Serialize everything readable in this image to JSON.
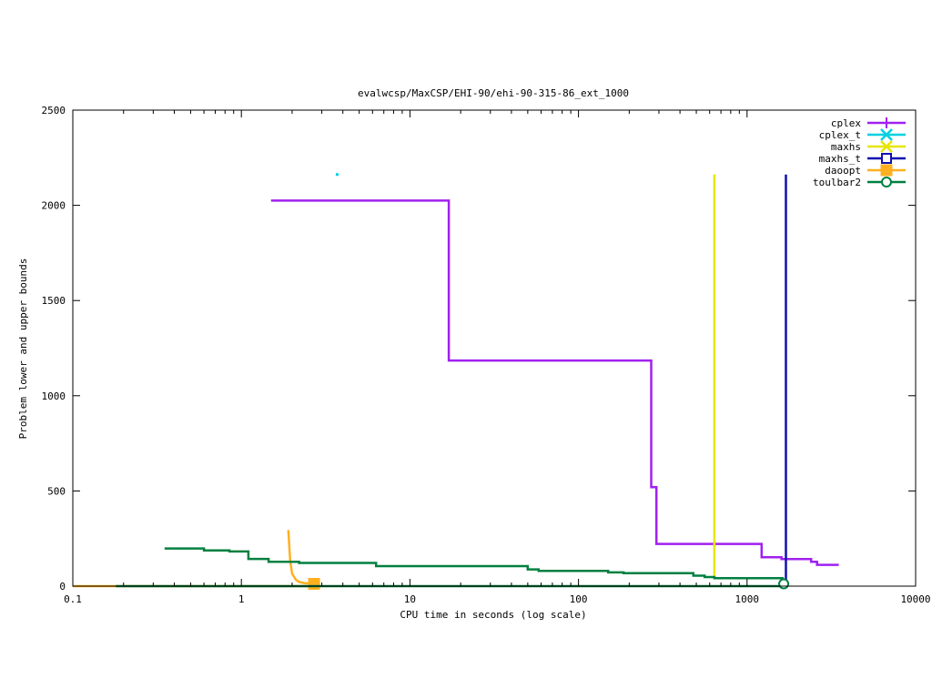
{
  "chart_data": {
    "type": "line",
    "title": "evalwcsp/MaxCSP/EHI-90/ehi-90-315-86_ext_1000",
    "xlabel": "CPU time in seconds (log scale)",
    "ylabel": "Problem lower and upper bounds",
    "xscale": "log",
    "xlim": [
      0.1,
      10000
    ],
    "ylim": [
      0,
      2500
    ],
    "xticks": [
      0.1,
      1,
      10,
      100,
      1000,
      10000
    ],
    "xtick_labels": [
      "0.1",
      "1",
      "10",
      "100",
      "1000",
      "10000"
    ],
    "yticks": [
      0,
      500,
      1000,
      1500,
      2000,
      2500
    ],
    "ytick_labels": [
      "0",
      "500",
      "1000",
      "1500",
      "2000",
      "2500"
    ],
    "grid": false,
    "legend_position": "top-right",
    "series": [
      {
        "name": "cplex",
        "color": "#a020f0",
        "marker": "plus",
        "points": [
          [
            1.5,
            2025
          ],
          [
            17,
            2025
          ],
          [
            17,
            1185
          ],
          [
            270,
            1185
          ],
          [
            270,
            520
          ],
          [
            290,
            520
          ],
          [
            290,
            222
          ],
          [
            1220,
            222
          ],
          [
            1220,
            152
          ],
          [
            1600,
            152
          ],
          [
            1600,
            142
          ],
          [
            2400,
            142
          ],
          [
            2400,
            128
          ],
          [
            2600,
            128
          ],
          [
            2600,
            112
          ],
          [
            3500,
            112
          ]
        ]
      },
      {
        "name": "cplex_t",
        "color": "#00d0e0",
        "marker": "x",
        "points": [
          [
            3.7,
            2162
          ]
        ]
      },
      {
        "name": "maxhs",
        "color": "#e6e600",
        "marker": "x",
        "points": [
          [
            640,
            2162
          ],
          [
            640,
            40
          ]
        ]
      },
      {
        "name": "maxhs_t",
        "color": "#1010b0",
        "marker": "square-open",
        "points": [
          [
            1700,
            2162
          ],
          [
            1700,
            0
          ]
        ]
      },
      {
        "name": "daoopt",
        "color": "#ffb020",
        "marker": "square-filled",
        "points": [
          [
            1.9,
            295
          ],
          [
            1.92,
            220
          ],
          [
            1.95,
            130
          ],
          [
            2.0,
            65
          ],
          [
            2.1,
            35
          ],
          [
            2.2,
            22
          ],
          [
            2.4,
            15
          ],
          [
            2.7,
            15
          ]
        ],
        "lower_points": [
          [
            0.1,
            0
          ],
          [
            2.7,
            0
          ]
        ],
        "marker_at": [
          [
            2.7,
            12
          ]
        ]
      },
      {
        "name": "toulbar2",
        "color": "#008040",
        "marker": "circle-open",
        "points": [
          [
            0.35,
            198
          ],
          [
            0.6,
            198
          ],
          [
            0.6,
            188
          ],
          [
            0.85,
            188
          ],
          [
            0.85,
            182
          ],
          [
            1.1,
            182
          ],
          [
            1.1,
            143
          ],
          [
            1.45,
            143
          ],
          [
            1.45,
            128
          ],
          [
            2.2,
            128
          ],
          [
            2.2,
            122
          ],
          [
            6.3,
            122
          ],
          [
            6.3,
            105
          ],
          [
            50,
            105
          ],
          [
            50,
            88
          ],
          [
            58,
            88
          ],
          [
            58,
            80
          ],
          [
            150,
            80
          ],
          [
            150,
            72
          ],
          [
            185,
            72
          ],
          [
            185,
            68
          ],
          [
            480,
            68
          ],
          [
            480,
            55
          ],
          [
            560,
            55
          ],
          [
            560,
            48
          ],
          [
            640,
            48
          ],
          [
            640,
            42
          ],
          [
            1650,
            42
          ]
        ],
        "lower_points": [
          [
            0.18,
            0
          ],
          [
            1700,
            0
          ]
        ],
        "marker_at": [
          [
            1650,
            12
          ]
        ]
      }
    ]
  }
}
